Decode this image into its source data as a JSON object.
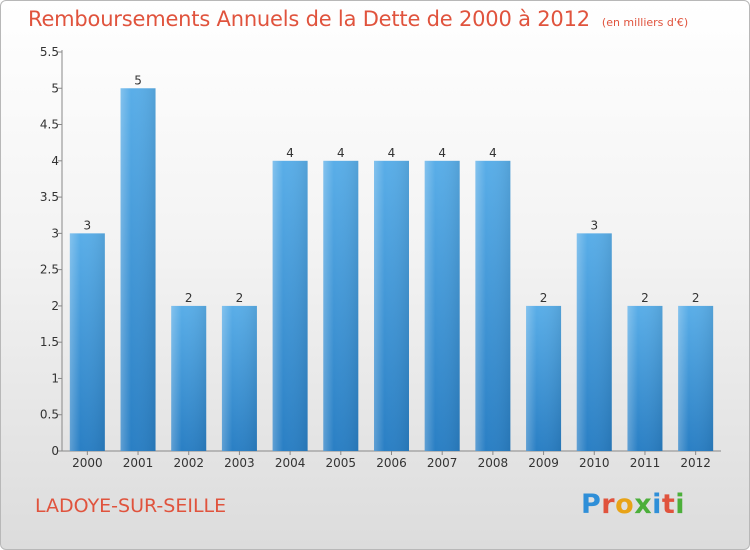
{
  "header": {
    "title": "Remboursements Annuels de la Dette de 2000 à 2012",
    "unit_note": "(en milliers d'€)"
  },
  "commune": "LADOYE-SUR-SEILLE",
  "logo": {
    "letters": [
      "P",
      "r",
      "o",
      "x",
      "i",
      "t",
      "i"
    ],
    "colors": [
      "#2f8fd8",
      "#e0533d",
      "#e8a317",
      "#4caf3a",
      "#2f8fd8",
      "#e0533d",
      "#4caf3a"
    ]
  },
  "colors": {
    "bar_top": "#5aaee8",
    "bar_bottom": "#2a7fc4",
    "title": "#e0533d"
  },
  "chart_data": {
    "type": "bar",
    "title": "Remboursements Annuels de la Dette de 2000 à 2012",
    "categories": [
      "2000",
      "2001",
      "2002",
      "2003",
      "2004",
      "2005",
      "2006",
      "2007",
      "2008",
      "2009",
      "2010",
      "2011",
      "2012"
    ],
    "values": [
      3,
      5,
      2,
      2,
      4,
      4,
      4,
      4,
      4,
      2,
      3,
      2,
      2
    ],
    "value_labels": [
      "3",
      "5",
      "2",
      "2",
      "4",
      "4",
      "4",
      "4",
      "4",
      "2",
      "3",
      "2",
      "2"
    ],
    "ylim": [
      0,
      5.5
    ],
    "yticks": [
      0,
      0.5,
      1,
      1.5,
      2,
      2.5,
      3,
      3.5,
      4,
      4.5,
      5,
      5.5
    ],
    "ytick_labels": [
      "0",
      "0.5",
      "1",
      "1.5",
      "2",
      "2.5",
      "3",
      "3.5",
      "4",
      "4.5",
      "5",
      "5.5"
    ],
    "grid": false
  }
}
